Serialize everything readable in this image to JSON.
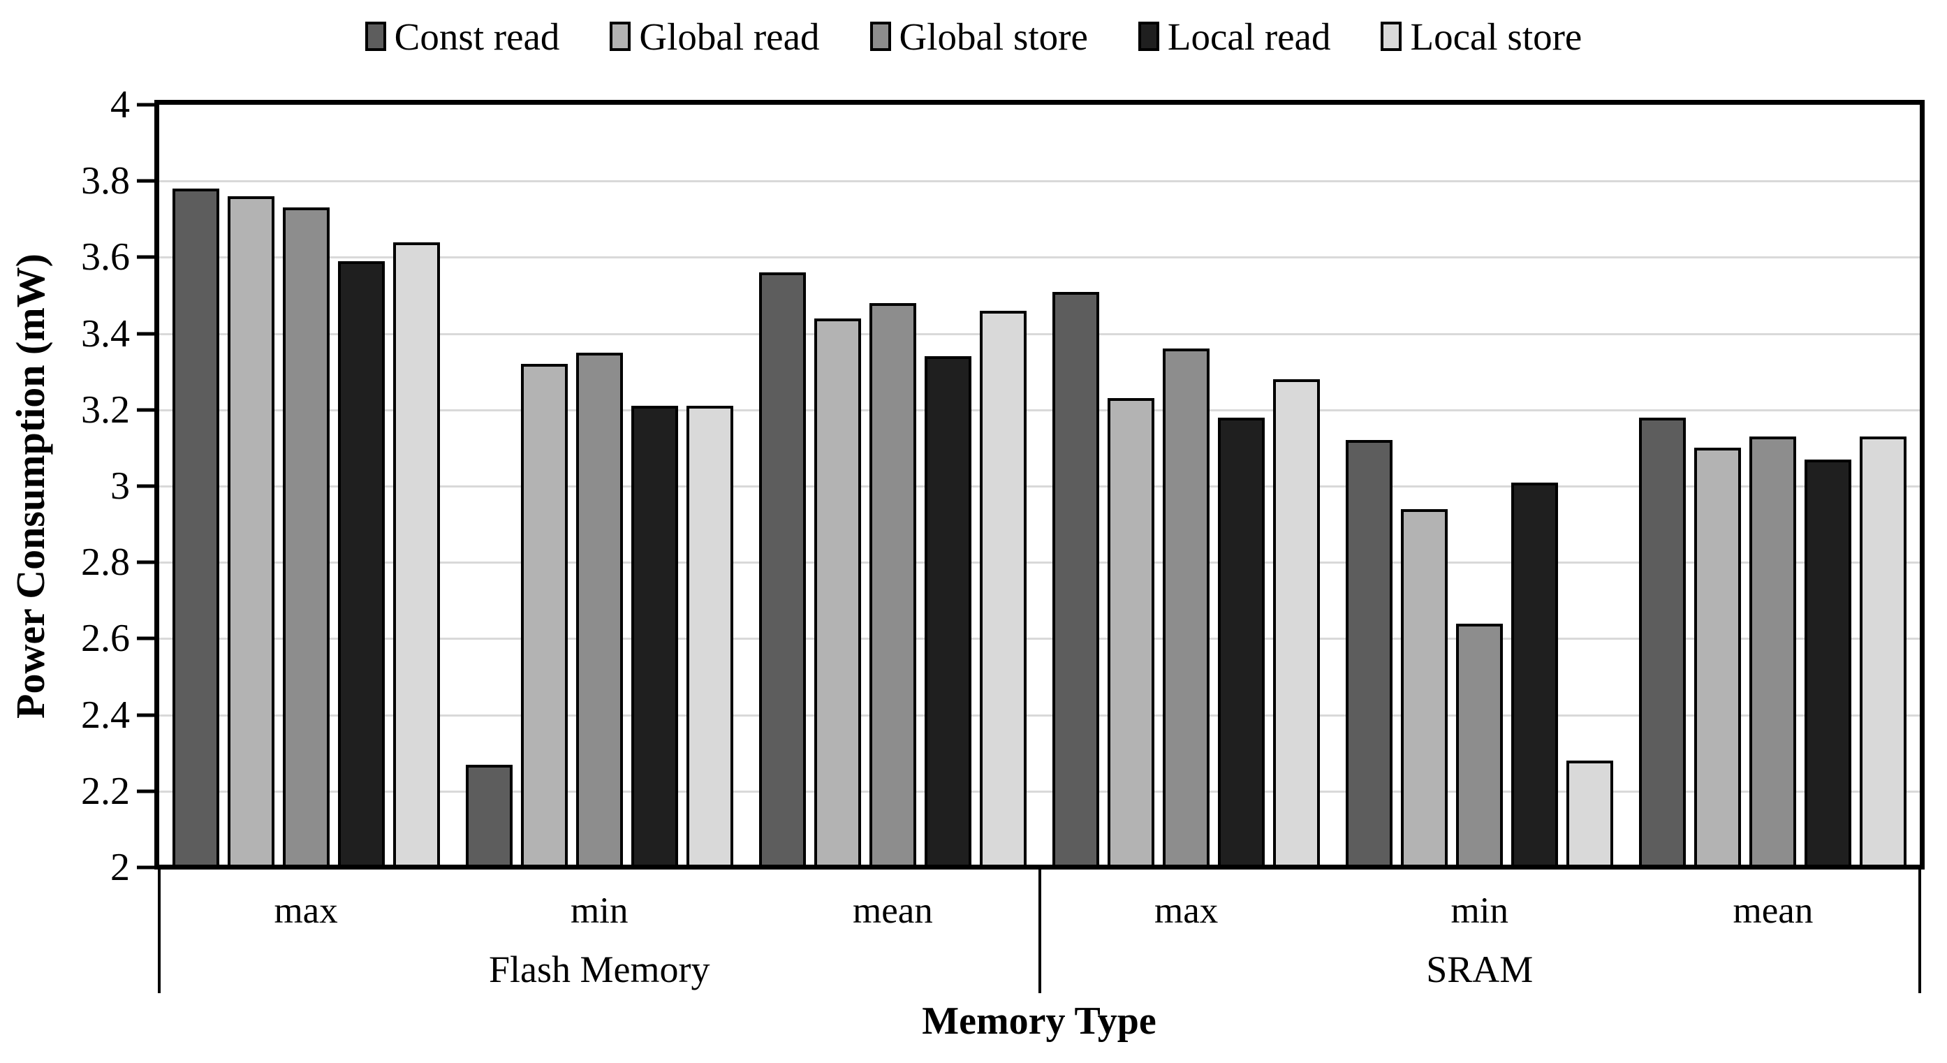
{
  "legend": {
    "items": [
      {
        "label": "Const read",
        "color": "#5d5d5d"
      },
      {
        "label": "Global read",
        "color": "#b3b3b3"
      },
      {
        "label": "Global store",
        "color": "#8d8d8d"
      },
      {
        "label": "Local read",
        "color": "#1f1f1f"
      },
      {
        "label": "Local store",
        "color": "#d9d9d9"
      }
    ]
  },
  "y_axis": {
    "title": "Power Consumption (mW)",
    "min": 2,
    "max": 4,
    "ticks": [
      {
        "label": "4",
        "value": 4.0
      },
      {
        "label": "3.8",
        "value": 3.8
      },
      {
        "label": "3.6",
        "value": 3.6
      },
      {
        "label": "3.4",
        "value": 3.4
      },
      {
        "label": "3.2",
        "value": 3.2
      },
      {
        "label": "3",
        "value": 3.0
      },
      {
        "label": "2.8",
        "value": 2.8
      },
      {
        "label": "2.6",
        "value": 2.6
      },
      {
        "label": "2.4",
        "value": 2.4
      },
      {
        "label": "2.2",
        "value": 2.2
      },
      {
        "label": "2",
        "value": 2.0
      }
    ]
  },
  "x_axis": {
    "title": "Memory Type",
    "groups": [
      {
        "label": "Flash Memory",
        "categories": [
          "max",
          "min",
          "mean"
        ]
      },
      {
        "label": "SRAM",
        "categories": [
          "max",
          "min",
          "mean"
        ]
      }
    ]
  },
  "chart_data": {
    "type": "bar",
    "title": "",
    "xlabel": "Memory Type",
    "ylabel": "Power Consumption (mW)",
    "ylim": [
      2,
      4
    ],
    "grid": "horizontal",
    "legend_position": "top-center",
    "columns": [
      "Flash Memory max",
      "Flash Memory min",
      "Flash Memory mean",
      "SRAM max",
      "SRAM min",
      "SRAM mean"
    ],
    "series": [
      {
        "name": "Const read",
        "color": "#5d5d5d",
        "values": [
          3.78,
          2.27,
          3.56,
          3.51,
          3.12,
          3.18
        ]
      },
      {
        "name": "Global read",
        "color": "#b3b3b3",
        "values": [
          3.76,
          3.32,
          3.44,
          3.23,
          2.94,
          3.1
        ]
      },
      {
        "name": "Global store",
        "color": "#8d8d8d",
        "values": [
          3.73,
          3.35,
          3.48,
          3.36,
          2.64,
          3.13
        ]
      },
      {
        "name": "Local read",
        "color": "#1f1f1f",
        "values": [
          3.59,
          3.21,
          3.34,
          3.18,
          3.01,
          3.07
        ]
      },
      {
        "name": "Local store",
        "color": "#d9d9d9",
        "values": [
          3.64,
          3.21,
          3.46,
          3.28,
          2.28,
          3.13
        ]
      }
    ]
  }
}
